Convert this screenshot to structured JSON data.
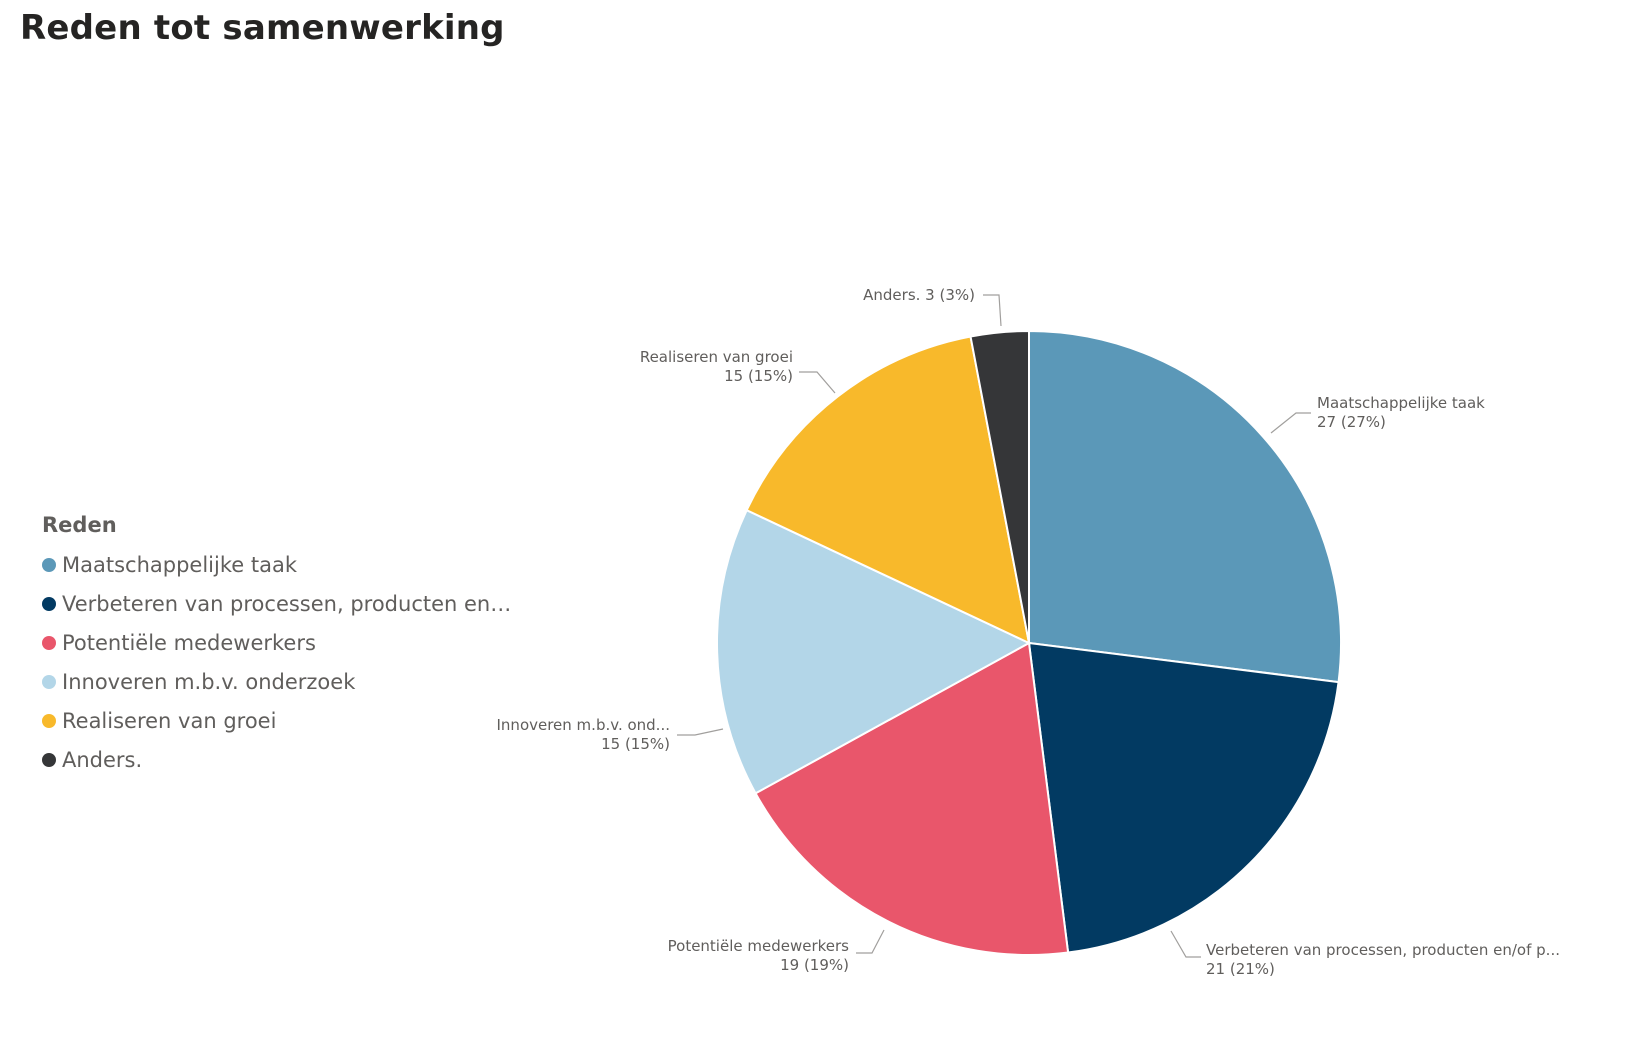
{
  "title": "Reden tot samenwerking",
  "legend": {
    "title": "Reden",
    "items": [
      {
        "label": "Maatschappelijke taak",
        "color": "#5b98b8"
      },
      {
        "label": "Verbeteren van processen, producten en…",
        "color": "#023a62"
      },
      {
        "label": "Potentiële medewerkers",
        "color": "#e9566b"
      },
      {
        "label": "Innoveren m.b.v. onderzoek",
        "color": "#b3d6e8"
      },
      {
        "label": "Realiseren van groei",
        "color": "#f8b92b"
      },
      {
        "label": "Anders.",
        "color": "#353638"
      }
    ]
  },
  "chart_data": {
    "type": "pie",
    "slices": [
      {
        "name": "Maatschappelijke taak",
        "value": 27,
        "color": "#5b98b8",
        "label_line1": "Maatschappelijke taak",
        "label_line2": "27 (27%)"
      },
      {
        "name": "Verbeteren van processen, producten en/of p...",
        "value": 21,
        "color": "#023a62",
        "label_line1": "Verbeteren van processen, producten en/of p...",
        "label_line2": "21 (21%)"
      },
      {
        "name": "Potentiële medewerkers",
        "value": 19,
        "color": "#e9566b",
        "label_line1": "Potentiële medewerkers",
        "label_line2": "19 (19%)"
      },
      {
        "name": "Innoveren m.b.v. ond...",
        "value": 15,
        "color": "#b3d6e8",
        "label_line1": "Innoveren m.b.v. ond...",
        "label_line2": "15 (15%)"
      },
      {
        "name": "Realiseren van groei",
        "value": 15,
        "color": "#f8b92b",
        "label_line1": "Realiseren van groei",
        "label_line2": "15 (15%)"
      },
      {
        "name": "Anders.",
        "value": 3,
        "color": "#353638",
        "label_line1": "Anders. 3 (3%)",
        "label_line2": ""
      }
    ]
  }
}
